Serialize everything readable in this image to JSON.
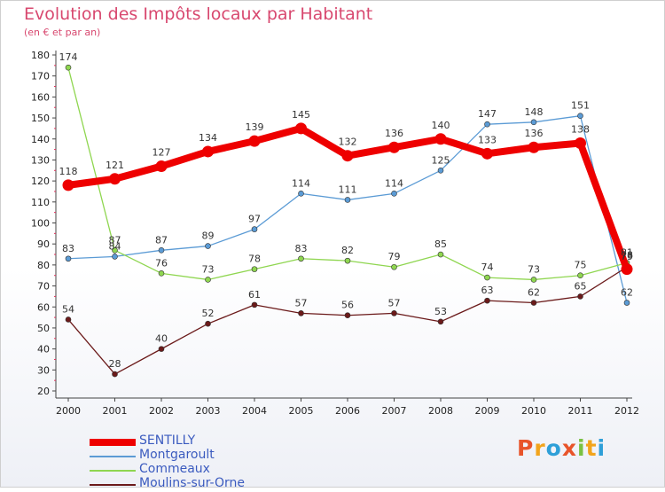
{
  "header": {
    "title": "Evolution des Impôts locaux par Habitant",
    "subtitle": "(en € et par an)"
  },
  "logo": {
    "text": "Proxiti",
    "colors": [
      "#e8542a",
      "#f2a41c",
      "#2e9fd8",
      "#e8542a",
      "#7ac142",
      "#f2a41c",
      "#2e9fd8"
    ]
  },
  "chart_data": {
    "type": "line",
    "x": [
      "2000",
      "2001",
      "2002",
      "2003",
      "2004",
      "2005",
      "2006",
      "2007",
      "2008",
      "2009",
      "2010",
      "2011",
      "2012"
    ],
    "ylim": [
      20,
      180
    ],
    "yticks": [
      20,
      30,
      40,
      50,
      60,
      70,
      80,
      90,
      100,
      110,
      120,
      130,
      140,
      150,
      160,
      170,
      180
    ],
    "grid": false,
    "legend": "bottom-left",
    "series": [
      {
        "name": "SENTILLY",
        "color": "#ee0000",
        "values": [
          118,
          121,
          127,
          134,
          139,
          145,
          132,
          136,
          140,
          133,
          136,
          138,
          78
        ],
        "labels": [
          "118",
          "121",
          "127",
          "134",
          "139",
          "145",
          "132",
          "136",
          "140",
          "133",
          "136",
          "138",
          "78"
        ],
        "bold": true
      },
      {
        "name": "Montgaroult",
        "color": "#5b9bd5",
        "values": [
          83,
          84,
          87,
          89,
          97,
          114,
          111,
          114,
          125,
          147,
          148,
          151,
          62
        ],
        "labels": [
          "83",
          "84",
          "87",
          "89",
          "97",
          "114",
          "111",
          "114",
          "125",
          "147",
          "148",
          "151",
          "62"
        ]
      },
      {
        "name": "Commeaux",
        "color": "#8fd650",
        "values": [
          174,
          87,
          76,
          73,
          78,
          83,
          82,
          79,
          85,
          74,
          73,
          75,
          81
        ],
        "labels": [
          "174",
          "87",
          "76",
          "73",
          "78",
          "83",
          "82",
          "79",
          "85",
          "74",
          "73",
          "75",
          "81"
        ]
      },
      {
        "name": "Moulins-sur-Orne",
        "color": "#6b1a1a",
        "values": [
          54,
          28,
          40,
          52,
          61,
          57,
          56,
          57,
          53,
          63,
          62,
          65,
          79
        ],
        "labels": [
          "54",
          "28",
          "40",
          "52",
          "61",
          "57",
          "56",
          "57",
          "53",
          "63",
          "62",
          "65",
          "79"
        ]
      }
    ]
  }
}
